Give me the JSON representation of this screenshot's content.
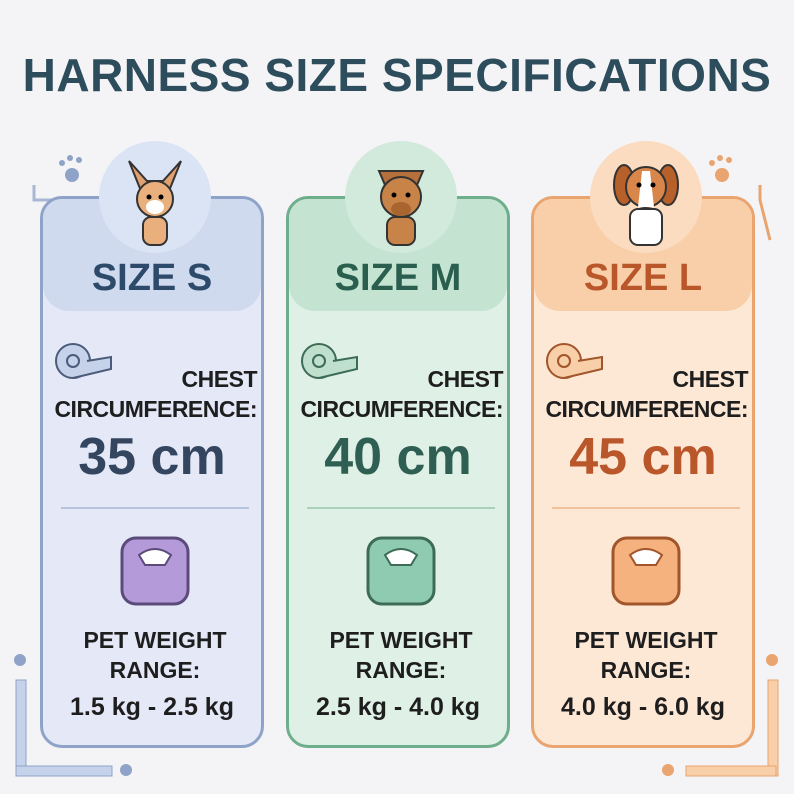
{
  "title": "HARNESS SIZE SPECIFICATIONS",
  "cards": [
    {
      "size": "SIZE S",
      "chest_label": "CHEST CIRCUMFERENCE:",
      "chest": "35 cm",
      "weight_label": "PET WEIGHT RANGE:",
      "weight": "1.5 kg - 2.5 kg"
    },
    {
      "size": "SIZE M",
      "chest_label": "CHEST CIRCUMFERENCE:",
      "chest": "40 cm",
      "weight_label": "PET WEIGHT RANGE:",
      "weight": "2.5 kg - 4.0 kg"
    },
    {
      "size": "SIZE L",
      "chest_label": "CHEST CIRCUMFERENCE:",
      "chest": "45 cm",
      "weight_label": "PET WEIGHT RANGE:",
      "weight": "4.0 kg - 6.0 kg"
    }
  ]
}
